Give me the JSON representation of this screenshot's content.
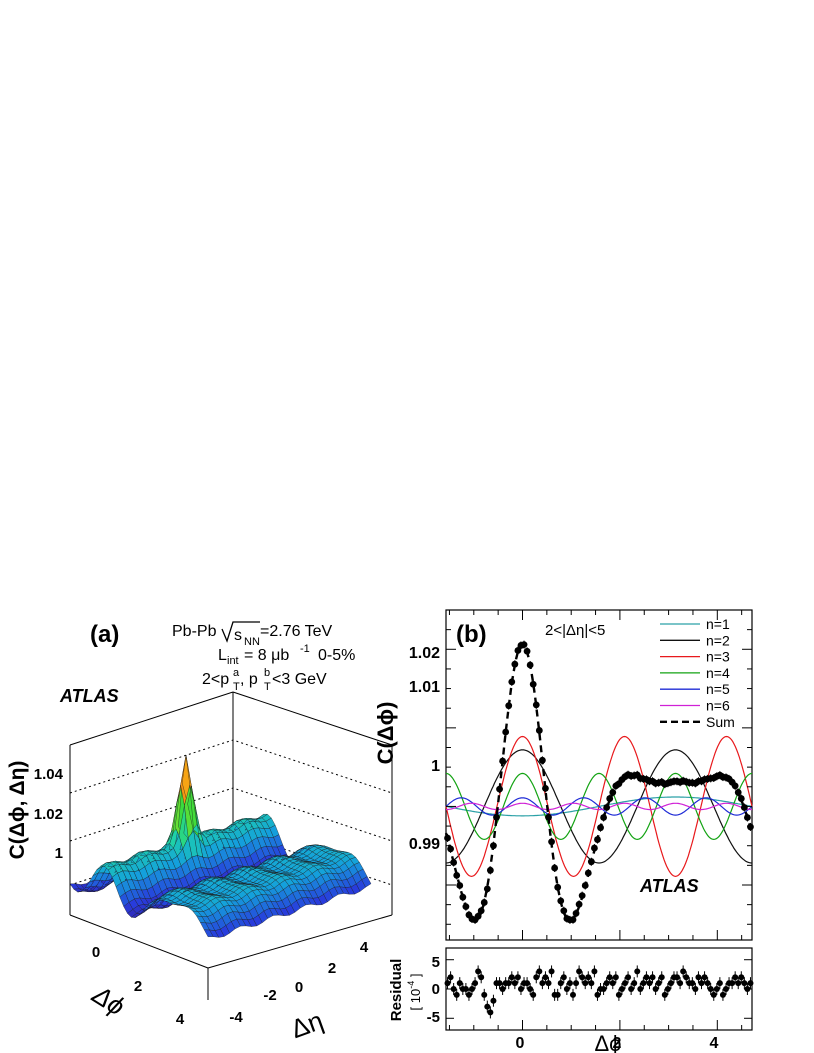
{
  "chart_data": [
    {
      "panel": "a",
      "type": "surface",
      "panel_label": "(a)",
      "watermark": "ATLAS",
      "info": {
        "system": "Pb-Pb",
        "energy_label": "s",
        "energy_sub": "NN",
        "energy_value": "=2.76 TeV",
        "lumi_prefix": "L",
        "lumi_sub": "int",
        "lumi_value": "= 8 μb",
        "lumi_exp": "-1",
        "centrality": "0-5%",
        "pt_prefix": "2<p",
        "pt_sup_a": "a",
        "pt_sub_a": "T",
        "pt_mid": ", p",
        "pt_sup_b": "b",
        "pt_sub_b": "T",
        "pt_suffix": "<3 GeV"
      },
      "zlabel": "C(Δϕ, Δη)",
      "xlabel": "Δϕ",
      "ylabel": "Δη",
      "z_ticks": [
        "1.04",
        "1.02",
        "1"
      ],
      "phi_ticks": [
        "0",
        "2",
        "4"
      ],
      "eta_ticks": [
        "-4",
        "-2",
        "0",
        "2",
        "4"
      ],
      "phi_range": [
        -1.57,
        4.71
      ],
      "eta_range": [
        -5,
        5
      ],
      "z_range": [
        0.98,
        1.06
      ],
      "near_side_peak": 1.045
    },
    {
      "panel": "b",
      "type": "line",
      "panel_label": "(b)",
      "watermark": "ATLAS",
      "selection": "2<|Δη|<5",
      "ylabel": "C(Δϕ)",
      "xlabel": "Δϕ",
      "xlim": [
        -1.5708,
        4.7124
      ],
      "ylim": [
        0.983,
        1.025
      ],
      "x_ticks": [
        "0",
        "2",
        "4"
      ],
      "y_ticks": [
        "0.99",
        "1",
        "1.01",
        "1.02"
      ],
      "legend_position": "top-right",
      "series": [
        {
          "name": "n=1",
          "color": "#2aa0a6",
          "amplitude": -0.0012
        },
        {
          "name": "n=2",
          "color": "#111111",
          "amplitude": 0.0072
        },
        {
          "name": "n=3",
          "color": "#e8191c",
          "amplitude": 0.0089
        },
        {
          "name": "n=4",
          "color": "#13a313",
          "amplitude": 0.0042
        },
        {
          "name": "n=5",
          "color": "#1f2bd6",
          "amplitude": 0.0011
        },
        {
          "name": "n=6",
          "color": "#d021d6",
          "amplitude": 0.0004
        },
        {
          "name": "Sum",
          "color": "#000000",
          "style": "dashed"
        }
      ],
      "residual": {
        "ylabel": "Residual",
        "yunit": "[ 10",
        "yunit_exp": "-4",
        "yunit_close": " ]",
        "ylim": [
          -7,
          7
        ],
        "y_ticks": [
          "5",
          "0",
          "-5"
        ],
        "values": [
          1,
          2,
          0,
          -1,
          1,
          0,
          0,
          -1,
          0,
          1,
          3,
          2,
          -1,
          -3,
          -4,
          -2,
          1,
          1,
          0,
          1,
          1,
          2,
          1,
          2,
          0,
          1,
          1,
          0,
          -1,
          2,
          3,
          1,
          2,
          1,
          3,
          -1,
          -1,
          1,
          2,
          0,
          1,
          -1,
          1,
          3,
          2,
          1,
          2,
          1,
          3,
          -1,
          0,
          0,
          1,
          2,
          1,
          2,
          -1,
          0,
          1,
          2,
          0,
          1,
          3,
          0,
          1,
          2,
          1,
          2,
          0,
          1,
          2,
          -1,
          0,
          1,
          2,
          2,
          1,
          3,
          2,
          1,
          1,
          0,
          2,
          1,
          2,
          1,
          0,
          -1,
          0,
          1,
          -1,
          0,
          1,
          1,
          2,
          1,
          2,
          1,
          0,
          1
        ]
      }
    }
  ]
}
